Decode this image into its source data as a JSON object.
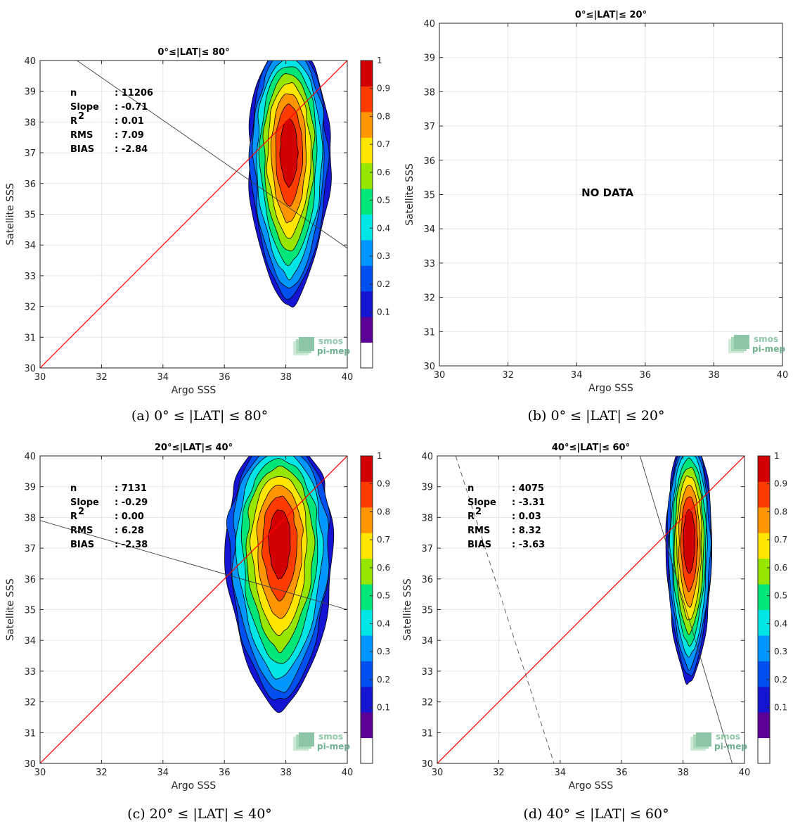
{
  "chart_data": [
    {
      "type": "heatmap",
      "title": "0°≤|LAT|≤ 80°",
      "caption": "(a) 0° ≤ |LAT| ≤ 80°",
      "xlabel": "Argo SSS",
      "ylabel": "Satellite SSS",
      "xlim": [
        30,
        40
      ],
      "ylim": [
        30,
        40
      ],
      "xticks": [
        "30",
        "32",
        "34",
        "36",
        "38",
        "40"
      ],
      "yticks": [
        "30",
        "31",
        "32",
        "33",
        "34",
        "35",
        "36",
        "37",
        "38",
        "39",
        "40"
      ],
      "grid": true,
      "has_data": true,
      "stats": [
        {
          "label": "n",
          "value": ": 11206"
        },
        {
          "label": "Slope",
          "value": ": -0.71"
        },
        {
          "label": "R",
          "sup": "2",
          "value": ": 0.01"
        },
        {
          "label": "RMS",
          "value": ": 7.09"
        },
        {
          "label": "BIAS",
          "value": ": -2.84"
        }
      ],
      "fit_line": {
        "x": [
          31.2,
          40
        ],
        "y": [
          40,
          33.9
        ]
      },
      "identity_line": {
        "x": [
          30,
          40
        ],
        "y": [
          30,
          40
        ]
      },
      "density_core": {
        "x": 38.1,
        "y": 37.0,
        "x_halfwidth": 1.3,
        "y_range": [
          31.9,
          40
        ]
      },
      "colorbar": {
        "ticks": [
          "0.1",
          "0.2",
          "0.3",
          "0.4",
          "0.5",
          "0.6",
          "0.7",
          "0.8",
          "0.9",
          "1"
        ]
      }
    },
    {
      "type": "heatmap",
      "title": "0°≤|LAT|≤ 20°",
      "caption": "(b) 0° ≤ |LAT| ≤ 20°",
      "xlabel": "Argo SSS",
      "ylabel": "Satellite SSS",
      "xlim": [
        30,
        40
      ],
      "ylim": [
        30,
        40
      ],
      "xticks": [
        "30",
        "32",
        "34",
        "36",
        "38",
        "40"
      ],
      "yticks": [
        "30",
        "31",
        "32",
        "33",
        "34",
        "35",
        "36",
        "37",
        "38",
        "39",
        "40"
      ],
      "grid": true,
      "has_data": false,
      "no_data_text": "NO DATA"
    },
    {
      "type": "heatmap",
      "title": "20°≤|LAT|≤ 40°",
      "caption": "(c) 20° ≤ |LAT| ≤ 40°",
      "xlabel": "Argo SSS",
      "ylabel": "Satellite SSS",
      "xlim": [
        30,
        40
      ],
      "ylim": [
        30,
        40
      ],
      "xticks": [
        "30",
        "32",
        "34",
        "36",
        "38",
        "40"
      ],
      "yticks": [
        "30",
        "31",
        "32",
        "33",
        "34",
        "35",
        "36",
        "37",
        "38",
        "39",
        "40"
      ],
      "grid": true,
      "has_data": true,
      "stats": [
        {
          "label": "n",
          "value": ": 7131"
        },
        {
          "label": "Slope",
          "value": ": -0.29"
        },
        {
          "label": "R",
          "sup": "2",
          "value": ": 0.00"
        },
        {
          "label": "RMS",
          "value": ": 6.28"
        },
        {
          "label": "BIAS",
          "value": ": -2.38"
        }
      ],
      "fit_line": {
        "x": [
          30,
          40
        ],
        "y": [
          37.9,
          35.0
        ]
      },
      "identity_line": {
        "x": [
          30,
          40
        ],
        "y": [
          30,
          40
        ]
      },
      "density_core": {
        "x": 37.8,
        "y": 37.2,
        "x_halfwidth": 1.75,
        "y_range": [
          31.6,
          40
        ]
      },
      "colorbar": {
        "ticks": [
          "0.1",
          "0.2",
          "0.3",
          "0.4",
          "0.5",
          "0.6",
          "0.7",
          "0.8",
          "0.9",
          "1"
        ]
      }
    },
    {
      "type": "heatmap",
      "title": "40°≤|LAT|≤ 60°",
      "caption": "(d) 40° ≤ |LAT| ≤ 60°",
      "xlabel": "Argo SSS",
      "ylabel": "Satellite SSS",
      "xlim": [
        30,
        40
      ],
      "ylim": [
        30,
        40
      ],
      "xticks": [
        "30",
        "32",
        "34",
        "36",
        "38",
        "40"
      ],
      "yticks": [
        "30",
        "31",
        "32",
        "33",
        "34",
        "35",
        "36",
        "37",
        "38",
        "39",
        "40"
      ],
      "grid": true,
      "has_data": true,
      "stats": [
        {
          "label": "n",
          "value": ": 4075"
        },
        {
          "label": "Slope",
          "value": ": -3.31"
        },
        {
          "label": "R",
          "sup": "2",
          "value": ": 0.03"
        },
        {
          "label": "RMS",
          "value": ": 8.32"
        },
        {
          "label": "BIAS",
          "value": ": -3.63"
        }
      ],
      "fit_line": {
        "x": [
          36.6,
          39.6
        ],
        "y": [
          40,
          30
        ]
      },
      "dashed_line": {
        "x": [
          30.6,
          33.8
        ],
        "y": [
          40,
          30
        ]
      },
      "identity_line": {
        "x": [
          30,
          40
        ],
        "y": [
          30,
          40
        ]
      },
      "density_core": {
        "x": 38.2,
        "y": 37.2,
        "x_halfwidth": 0.7,
        "y_range": [
          32.5,
          40
        ]
      },
      "colorbar": {
        "ticks": [
          "0.1",
          "0.2",
          "0.3",
          "0.4",
          "0.5",
          "0.6",
          "0.7",
          "0.8",
          "0.9",
          "1"
        ]
      }
    }
  ],
  "logo": {
    "line1": "smos",
    "line2": "pi-mep"
  },
  "colors": {
    "identity": "#ff0000",
    "fit": "#404040",
    "grid": "#e6e6e6",
    "colormap": [
      "#5a0096",
      "#1414d2",
      "#0050f0",
      "#0096ff",
      "#00e6e6",
      "#00e678",
      "#96e600",
      "#ffe600",
      "#ff9600",
      "#ff3c00",
      "#d20000",
      "#8c0000"
    ]
  }
}
